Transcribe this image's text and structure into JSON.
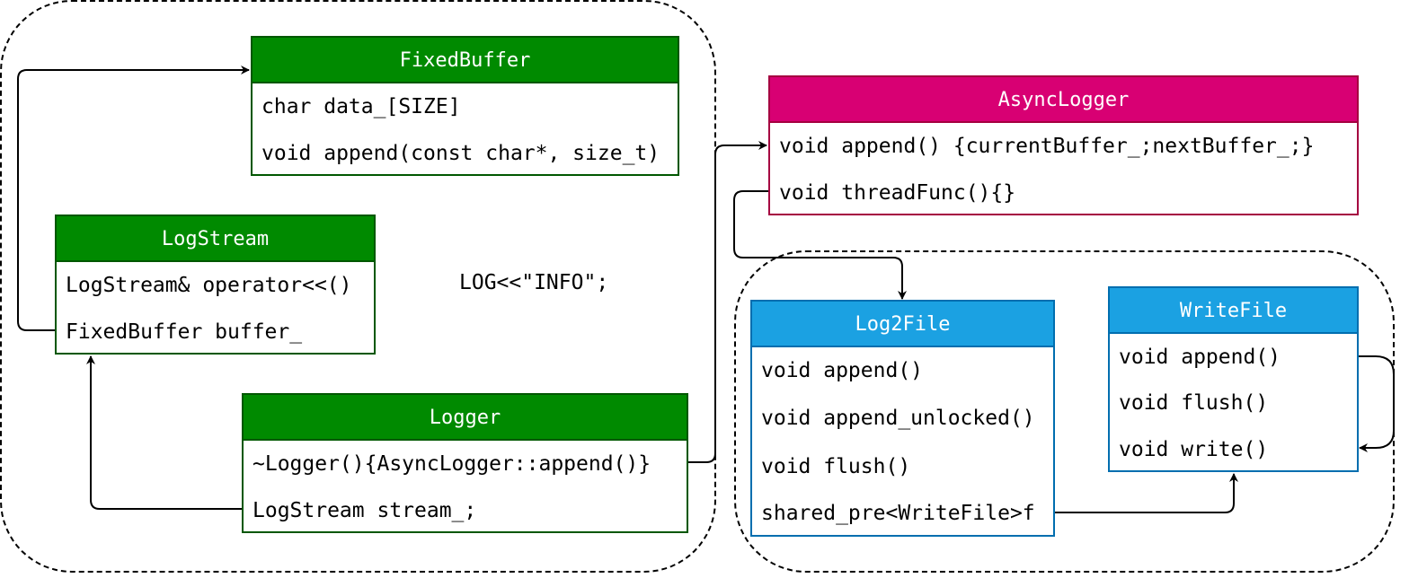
{
  "classes": {
    "fixed_buffer": {
      "title": "FixedBuffer",
      "members": [
        "char data_[SIZE]",
        "void append(const char*, size_t)"
      ]
    },
    "log_stream": {
      "title": "LogStream",
      "members": [
        "LogStream& operator<<()",
        "FixedBuffer buffer_"
      ]
    },
    "logger": {
      "title": "Logger",
      "members": [
        "~Logger(){AsyncLogger::append()}",
        "LogStream stream_;"
      ]
    },
    "async_logger": {
      "title": "AsyncLogger",
      "members": [
        "void append() {currentBuffer_;nextBuffer_;}",
        "void threadFunc(){}"
      ]
    },
    "log2file": {
      "title": "Log2File",
      "members": [
        "void append()",
        "void append_unlocked()",
        "void flush()",
        "shared_pre<WriteFile>f"
      ]
    },
    "write_file": {
      "title": "WriteFile",
      "members": [
        "void append()",
        "void flush()",
        "void write()"
      ]
    }
  },
  "annotation": "LOG<<\"INFO\";",
  "colors": {
    "green_fill": "#008a00",
    "green_stroke": "#005700",
    "magenta_fill": "#d80073",
    "magenta_stroke": "#a50040",
    "blue_fill": "#1ba1e2",
    "blue_stroke": "#006eaf"
  }
}
